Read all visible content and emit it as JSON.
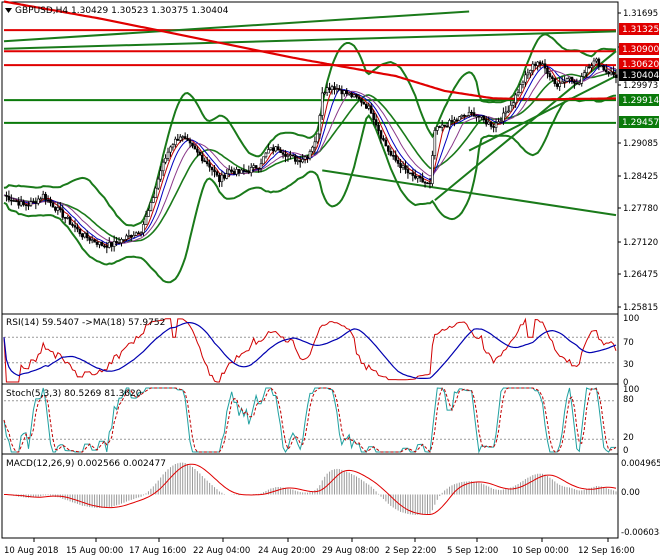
{
  "header": {
    "symbol_line": "GBPUSD,H4  1.30429 1.30523 1.30375 1.30404"
  },
  "icons": {
    "symbol_marker": "triangle-down-icon"
  },
  "colors": {
    "candle": "#000000",
    "ma_long": "#e00000",
    "bands": "#1a7a1a",
    "fast_ma": "#c00000",
    "mid_ma": "#0000c0",
    "slow_ma": "#8a3a8a",
    "level_red": "#e00000",
    "level_green": "#0a7a0a",
    "rsi_line": "#d00000",
    "rsi_ma": "#0000b0",
    "stoch_main": "#20a0a0",
    "stoch_signal": "#c00000",
    "macd_hist": "#9a9a9a",
    "macd_signal": "#e00000",
    "tag_black": "#000000",
    "tag_red": "#e00000",
    "tag_green": "#0a7a0a"
  },
  "price_axis": {
    "ticks": [
      "1.31695",
      "1.30900",
      "1.29973",
      "1.29085",
      "1.28425",
      "1.27780",
      "1.27120",
      "1.26475",
      "1.25815"
    ],
    "tags": [
      {
        "label": "1.31325",
        "kind": "red"
      },
      {
        "label": "1.30900",
        "kind": "red"
      },
      {
        "label": "1.30620",
        "kind": "red"
      },
      {
        "label": "1.30404",
        "kind": "black"
      },
      {
        "label": "1.29914",
        "kind": "green"
      },
      {
        "label": "1.29457",
        "kind": "green"
      }
    ]
  },
  "rsi": {
    "label": "RSI(14) 59.5407  ->MA(18) 57.9752",
    "ticks": [
      "100",
      "70",
      "30",
      "0"
    ]
  },
  "stoch": {
    "label": "Stoch(5,3,3) 80.5269 81.3620",
    "ticks": [
      "100",
      "80",
      "20",
      "0"
    ]
  },
  "macd": {
    "label": "MACD(12,26,9) 0.002566 0.002477",
    "ticks": [
      "0.004965",
      "0.00",
      "-0.006038"
    ]
  },
  "time_axis": {
    "labels": [
      "10 Aug 2018",
      "15 Aug 00:00",
      "17 Aug 16:00",
      "22 Aug 04:00",
      "24 Aug 20:00",
      "29 Aug 08:00",
      "2 Sep 22:00",
      "5 Sep 12:00",
      "10 Sep 00:00",
      "12 Sep 16:00"
    ]
  },
  "chart_data": {
    "type": "line",
    "title": "GBPUSD,H4  1.30429 1.30523 1.30375 1.30404",
    "x": [
      "10 Aug 2018",
      "15 Aug 00:00",
      "17 Aug 16:00",
      "22 Aug 04:00",
      "24 Aug 20:00",
      "29 Aug 08:00",
      "2 Sep 22:00",
      "5 Sep 12:00",
      "10 Sep 00:00",
      "12 Sep 16:00"
    ],
    "ylim": [
      1.2565,
      1.3185
    ],
    "series": [
      {
        "name": "GBPUSD,H4",
        "values": [
          1.279,
          1.27,
          1.274,
          1.288,
          1.285,
          1.302,
          1.296,
          1.295,
          1.3,
          1.304
        ]
      }
    ],
    "price_path": [
      [
        0,
        1.28
      ],
      [
        4,
        1.279
      ],
      [
        8,
        1.278
      ],
      [
        12,
        1.2785
      ],
      [
        16,
        1.28
      ],
      [
        20,
        1.278
      ],
      [
        24,
        1.276
      ],
      [
        28,
        1.274
      ],
      [
        32,
        1.272
      ],
      [
        36,
        1.271
      ],
      [
        40,
        1.27
      ],
      [
        44,
        1.27
      ],
      [
        48,
        1.271
      ],
      [
        52,
        1.272
      ],
      [
        56,
        1.273
      ],
      [
        60,
        1.278
      ],
      [
        64,
        1.285
      ],
      [
        68,
        1.29
      ],
      [
        72,
        1.292
      ],
      [
        76,
        1.29
      ],
      [
        80,
        1.288
      ],
      [
        84,
        1.286
      ],
      [
        88,
        1.283
      ],
      [
        92,
        1.285
      ],
      [
        96,
        1.2845
      ],
      [
        100,
        1.285
      ],
      [
        104,
        1.286
      ],
      [
        108,
        1.289
      ],
      [
        112,
        1.2895
      ],
      [
        116,
        1.288
      ],
      [
        120,
        1.287
      ],
      [
        124,
        1.288
      ],
      [
        128,
        1.292
      ],
      [
        130,
        1.301
      ],
      [
        134,
        1.302
      ],
      [
        138,
        1.301
      ],
      [
        142,
        1.3
      ],
      [
        146,
        1.299
      ],
      [
        150,
        1.297
      ],
      [
        154,
        1.292
      ],
      [
        158,
        1.288
      ],
      [
        162,
        1.286
      ],
      [
        166,
        1.284
      ],
      [
        170,
        1.283
      ],
      [
        174,
        1.282
      ],
      [
        176,
        1.293
      ],
      [
        180,
        1.294
      ],
      [
        184,
        1.295
      ],
      [
        188,
        1.296
      ],
      [
        192,
        1.2965
      ],
      [
        196,
        1.295
      ],
      [
        200,
        1.294
      ],
      [
        204,
        1.296
      ],
      [
        208,
        1.299
      ],
      [
        212,
        1.303
      ],
      [
        216,
        1.306
      ],
      [
        218,
        1.307
      ],
      [
        222,
        1.305
      ],
      [
        226,
        1.302
      ],
      [
        230,
        1.304
      ],
      [
        234,
        1.302
      ],
      [
        238,
        1.306
      ],
      [
        242,
        1.307
      ],
      [
        246,
        1.305
      ],
      [
        250,
        1.304
      ]
    ],
    "moving_average": [
      [
        0,
        1.319
      ],
      [
        40,
        1.3155
      ],
      [
        80,
        1.3115
      ],
      [
        120,
        1.3075
      ],
      [
        160,
        1.304
      ],
      [
        180,
        1.301
      ],
      [
        200,
        1.2995
      ],
      [
        220,
        1.2993
      ],
      [
        250,
        1.2995
      ]
    ],
    "levels": [
      1.31325,
      1.309,
      1.3062,
      1.29914,
      1.29457
    ],
    "trendlines": [
      {
        "from": [
          0,
          1.311
        ],
        "to": [
          190,
          1.317
        ]
      },
      {
        "from": [
          0,
          1.3095
        ],
        "to": [
          250,
          1.313
        ]
      },
      {
        "from": [
          130,
          1.285
        ],
        "to": [
          250,
          1.276
        ]
      },
      {
        "from": [
          176,
          1.279
        ],
        "to": [
          250,
          1.309
        ]
      },
      {
        "from": [
          190,
          1.289
        ],
        "to": [
          250,
          1.304
        ]
      }
    ]
  }
}
